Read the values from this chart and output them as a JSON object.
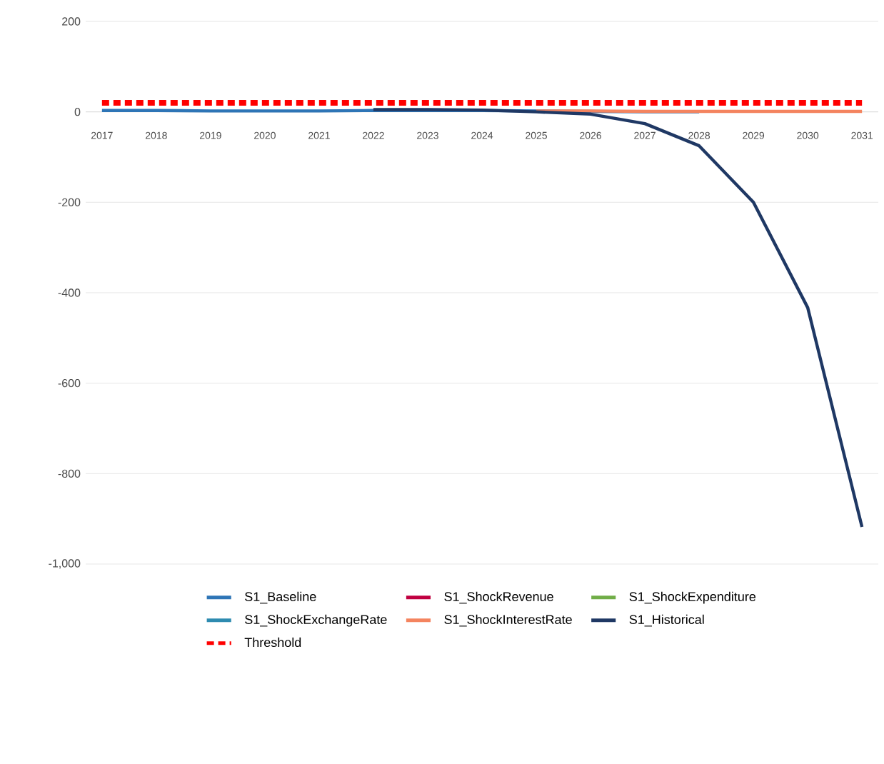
{
  "chart_data": {
    "type": "line",
    "categories": [
      "2017",
      "2018",
      "2019",
      "2020",
      "2021",
      "2022",
      "2023",
      "2024",
      "2025",
      "2026",
      "2027",
      "2028",
      "2029",
      "2030",
      "2031"
    ],
    "series": [
      {
        "name": "S1_Baseline",
        "color": "#2e75b6",
        "values": [
          3,
          3,
          2,
          2,
          2,
          3,
          3,
          3,
          2,
          1,
          0,
          0,
          null,
          null,
          null
        ]
      },
      {
        "name": "S1_ShockRevenue",
        "color": "#c00040",
        "values": [
          null,
          null,
          null,
          null,
          null,
          null,
          null,
          null,
          null,
          null,
          null,
          null,
          null,
          null,
          null
        ]
      },
      {
        "name": "S1_ShockExpenditure",
        "color": "#70ad47",
        "values": [
          null,
          null,
          null,
          null,
          null,
          null,
          null,
          null,
          null,
          null,
          null,
          null,
          null,
          null,
          null
        ]
      },
      {
        "name": "S1_ShockExchangeRate",
        "color": "#2e8bb0",
        "values": [
          null,
          null,
          null,
          null,
          null,
          null,
          null,
          null,
          null,
          null,
          null,
          null,
          null,
          null,
          null
        ]
      },
      {
        "name": "S1_ShockInterestRate",
        "color": "#f4845f",
        "values": [
          null,
          null,
          null,
          null,
          null,
          null,
          null,
          null,
          2,
          2,
          1,
          1,
          1,
          1,
          1
        ]
      },
      {
        "name": "S1_Historical",
        "color": "#1f3864",
        "values": [
          null,
          null,
          null,
          null,
          null,
          5,
          5,
          4,
          0,
          -5,
          -26,
          -75,
          -200,
          -433,
          -918
        ]
      },
      {
        "name": "Threshold",
        "color": "#ff0000",
        "line_style": "dashed",
        "values": [
          20,
          20,
          20,
          20,
          20,
          20,
          20,
          20,
          20,
          20,
          20,
          20,
          20,
          20,
          20
        ]
      }
    ],
    "ylim": [
      -1000,
      200
    ],
    "yticks": [
      200,
      0,
      -200,
      -400,
      -600,
      -800,
      {
        "value": -1000,
        "label": "-1,000"
      }
    ],
    "grid": "y",
    "legend": "bottom",
    "marker": "none",
    "line_style": "solid"
  }
}
